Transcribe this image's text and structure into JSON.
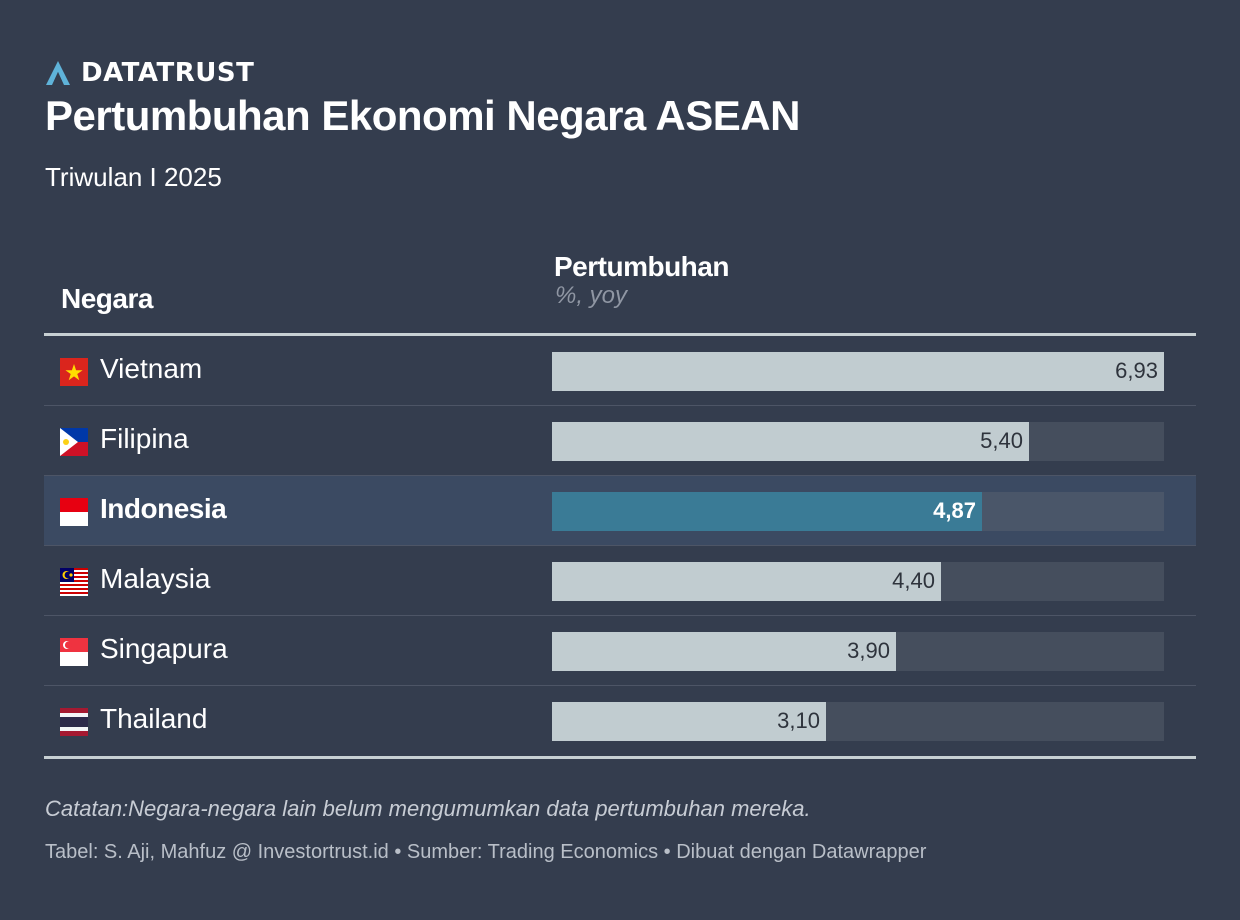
{
  "brand": {
    "name": "DATATRUST",
    "logo_icon": "triangle-logo-icon",
    "logo_color": "#5fb3d9"
  },
  "title": "Pertumbuhan Ekonomi Negara ASEAN",
  "subtitle": "Triwulan I 2025",
  "table": {
    "col_country": "Negara",
    "col_growth": "Pertumbuhan",
    "col_growth_unit": "%, yoy"
  },
  "chart_data": {
    "type": "table",
    "title": "Pertumbuhan Ekonomi Negara ASEAN",
    "subtitle": "Triwulan I 2025",
    "columns": [
      "Negara",
      "Pertumbuhan"
    ],
    "unit": "%, yoy",
    "xlim": [
      0,
      6.93
    ],
    "highlight": "Indonesia",
    "highlight_color": "#3a7b96",
    "bar_color": "#c1ccd0",
    "rows": [
      {
        "country": "Vietnam",
        "flag": "vietnam-flag-icon",
        "value": 6.93,
        "label": "6,93"
      },
      {
        "country": "Filipina",
        "flag": "philippines-flag-icon",
        "value": 5.4,
        "label": "5,40"
      },
      {
        "country": "Indonesia",
        "flag": "indonesia-flag-icon",
        "value": 4.87,
        "label": "4,87"
      },
      {
        "country": "Malaysia",
        "flag": "malaysia-flag-icon",
        "value": 4.4,
        "label": "4,40"
      },
      {
        "country": "Singapura",
        "flag": "singapore-flag-icon",
        "value": 3.9,
        "label": "3,90"
      },
      {
        "country": "Thailand",
        "flag": "thailand-flag-icon",
        "value": 3.1,
        "label": "3,10"
      }
    ]
  },
  "footer": {
    "note": "Catatan:Negara-negara lain belum mengumumkan data pertumbuhan mereka.",
    "credit": "Tabel: S. Aji, Mahfuz @ Investortrust.id • Sumber: Trading Economics • Dibuat dengan Datawrapper"
  }
}
